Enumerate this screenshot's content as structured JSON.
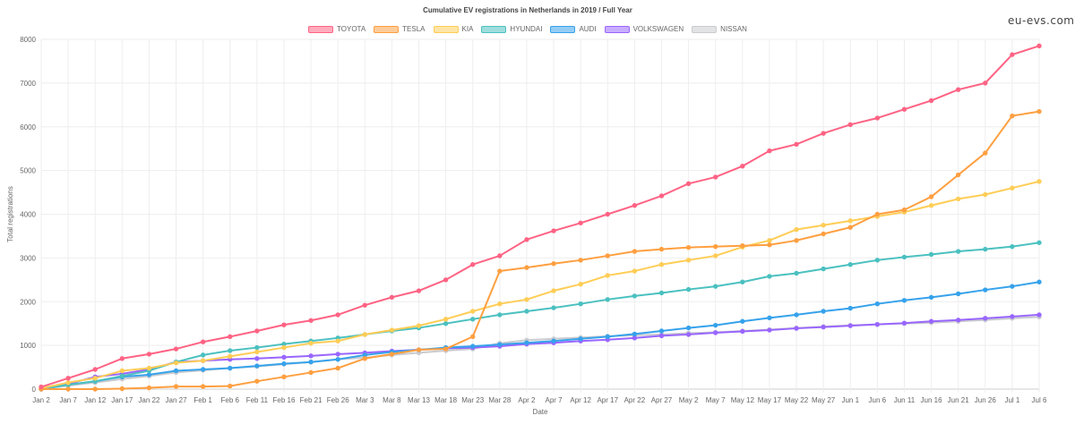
{
  "chart_data": {
    "type": "line",
    "title": "Cumulative EV registrations in Netherlands in 2019 / Full Year",
    "xlabel": "Date",
    "ylabel": "Total registrations",
    "ylim": [
      0,
      8000
    ],
    "yticks": [
      "0",
      "1000",
      "2000",
      "3000",
      "4000",
      "5000",
      "6000",
      "7000",
      "8000"
    ],
    "grid": true,
    "legend_position": "top",
    "x": [
      "Jan 2",
      "Jan 7",
      "Jan 12",
      "Jan 17",
      "Jan 22",
      "Jan 27",
      "Feb 1",
      "Feb 6",
      "Feb 11",
      "Feb 16",
      "Feb 21",
      "Feb 26",
      "Mar 3",
      "Mar 8",
      "Mar 13",
      "Mar 18",
      "Mar 23",
      "Mar 28",
      "Apr 2",
      "Apr 7",
      "Apr 12",
      "Apr 17",
      "Apr 22",
      "Apr 27",
      "May 2",
      "May 7",
      "May 12",
      "May 17",
      "May 22",
      "May 27",
      "Jun 1",
      "Jun 6",
      "Jun 11",
      "Jun 16",
      "Jun 21",
      "Jun 26",
      "Jul 1",
      "Jul 6"
    ],
    "series": [
      {
        "name": "TOYOTA",
        "color": "#ff6384",
        "values": [
          50,
          250,
          450,
          700,
          800,
          920,
          1080,
          1200,
          1330,
          1470,
          1570,
          1700,
          1920,
          2100,
          2250,
          2500,
          2850,
          3050,
          3420,
          3620,
          3800,
          4000,
          4200,
          4420,
          4700,
          4850,
          5100,
          5450,
          5600,
          5850,
          6050,
          6200,
          6400,
          6600,
          6850,
          7000,
          7650,
          7850
        ]
      },
      {
        "name": "TESLA",
        "color": "#ff9f40",
        "values": [
          0,
          0,
          0,
          10,
          30,
          60,
          60,
          70,
          180,
          280,
          380,
          480,
          700,
          800,
          900,
          920,
          1200,
          2700,
          2780,
          2870,
          2950,
          3050,
          3150,
          3200,
          3240,
          3260,
          3280,
          3300,
          3400,
          3550,
          3700,
          4000,
          4100,
          4400,
          4900,
          5400,
          6250,
          6350
        ]
      },
      {
        "name": "KIA",
        "color": "#ffcd56",
        "values": [
          20,
          150,
          250,
          420,
          480,
          600,
          650,
          750,
          850,
          950,
          1050,
          1100,
          1250,
          1350,
          1450,
          1600,
          1780,
          1950,
          2050,
          2250,
          2400,
          2600,
          2700,
          2850,
          2950,
          3050,
          3250,
          3400,
          3650,
          3750,
          3850,
          3950,
          4050,
          4200,
          4350,
          4450,
          4600,
          4750
        ]
      },
      {
        "name": "HYUNDAI",
        "color": "#4bc0c0",
        "values": [
          0,
          100,
          180,
          300,
          420,
          620,
          780,
          880,
          950,
          1030,
          1100,
          1170,
          1250,
          1330,
          1400,
          1500,
          1600,
          1700,
          1780,
          1860,
          1950,
          2050,
          2130,
          2200,
          2280,
          2350,
          2450,
          2580,
          2650,
          2750,
          2850,
          2950,
          3020,
          3080,
          3150,
          3200,
          3260,
          3350
        ]
      },
      {
        "name": "AUDI",
        "color": "#36a2eb",
        "values": [
          0,
          100,
          180,
          280,
          330,
          420,
          450,
          480,
          530,
          580,
          620,
          680,
          780,
          850,
          900,
          950,
          980,
          1020,
          1060,
          1100,
          1150,
          1200,
          1260,
          1330,
          1400,
          1460,
          1550,
          1630,
          1700,
          1780,
          1850,
          1950,
          2030,
          2100,
          2180,
          2270,
          2350,
          2450
        ]
      },
      {
        "name": "VOLKSWAGEN",
        "color": "#9966ff",
        "values": [
          0,
          120,
          280,
          350,
          450,
          620,
          650,
          680,
          700,
          730,
          760,
          800,
          830,
          870,
          900,
          930,
          950,
          980,
          1030,
          1060,
          1100,
          1130,
          1170,
          1220,
          1250,
          1290,
          1320,
          1350,
          1390,
          1420,
          1450,
          1480,
          1510,
          1550,
          1580,
          1620,
          1660,
          1700
        ]
      },
      {
        "name": "NISSAN",
        "color": "#c9cbcf",
        "values": [
          0,
          80,
          150,
          230,
          300,
          380,
          430,
          480,
          520,
          570,
          620,
          680,
          720,
          780,
          830,
          880,
          920,
          1050,
          1120,
          1150,
          1180,
          1210,
          1230,
          1250,
          1280,
          1300,
          1330,
          1360,
          1400,
          1430,
          1460,
          1480,
          1500,
          1520,
          1550,
          1580,
          1620,
          1650
        ]
      }
    ]
  },
  "brand": "eu-evs.com"
}
